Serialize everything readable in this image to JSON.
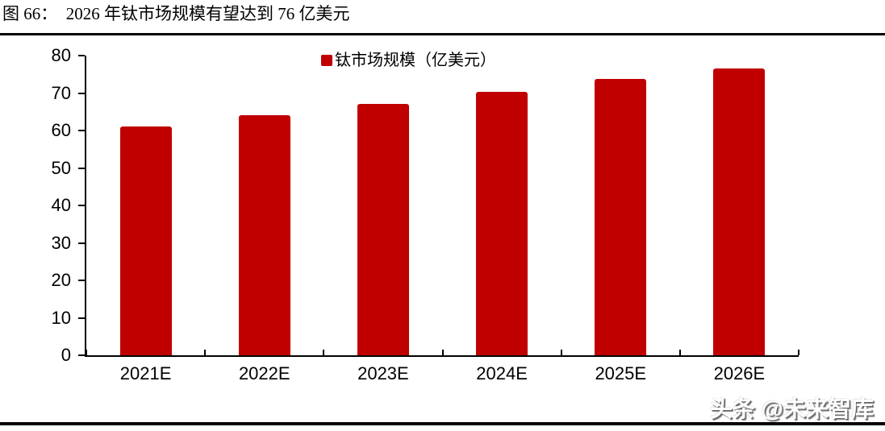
{
  "figure": {
    "title": "图 66：　2026 年钛市场规模有望达到 76 亿美元"
  },
  "watermark": "头条 @未来智库",
  "chart_data": {
    "type": "bar",
    "title": "",
    "xlabel": "",
    "ylabel": "",
    "categories": [
      "2021E",
      "2022E",
      "2023E",
      "2024E",
      "2025E",
      "2026E"
    ],
    "values": [
      61,
      64,
      67,
      70.3,
      73.7,
      76.5
    ],
    "series_name": "钛市场规模（亿美元）",
    "legend": {
      "label": "钛市场规模（亿美元）",
      "position": "top-center",
      "marker": "square"
    },
    "ylim": [
      0,
      80
    ],
    "ytick_step": 10,
    "yticks": [
      0,
      10,
      20,
      30,
      40,
      50,
      60,
      70,
      80
    ],
    "grid": false,
    "bar_color": "#c00000",
    "axis_color": "#000000"
  }
}
